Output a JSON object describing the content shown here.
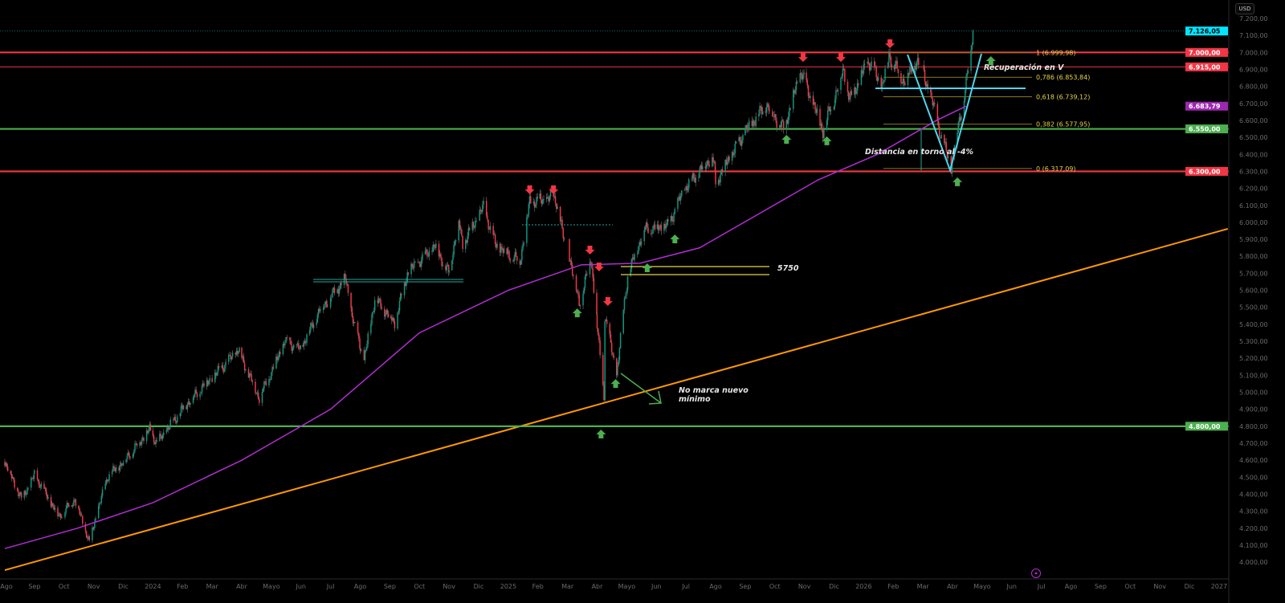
{
  "currency_button": "USD",
  "colors": {
    "up": "#089981",
    "down": "#f23645",
    "ma": "#b02ed0",
    "trend": "#ff9800",
    "fib": "#e8d44a",
    "v_shape": "#4dd6ee",
    "support": "#4caf50",
    "resistance": "#f23645"
  },
  "chart_data": {
    "type": "candlestick",
    "ylim": [
      3900,
      7250
    ],
    "x_range": [
      "2023-08-01",
      "2027-01-01"
    ],
    "y_ticks": [
      "7.200,00",
      "7.100,00",
      "7.000,00",
      "6.900,00",
      "6.800,00",
      "6.700,00",
      "6.600,00",
      "6.500,00",
      "6.400,00",
      "6.300,00",
      "6.200,00",
      "6.100,00",
      "6.000,00",
      "5.900,00",
      "5.800,00",
      "5.700,00",
      "5.600,00",
      "5.500,00",
      "5.400,00",
      "5.300,00",
      "5.200,00",
      "5.100,00",
      "5.000,00",
      "4.900,00",
      "4.800,00",
      "4.700,00",
      "4.600,00",
      "4.500,00",
      "4.400,00",
      "4.300,00",
      "4.200,00",
      "4.100,00",
      "4.000,00"
    ],
    "x_ticks": [
      "Ago",
      "Sep",
      "Oct",
      "Nov",
      "Dic",
      "2024",
      "Feb",
      "Mar",
      "Abr",
      "Mayo",
      "Jun",
      "Jul",
      "Ago",
      "Sep",
      "Oct",
      "Nov",
      "Dic",
      "2025",
      "Feb",
      "Mar",
      "Abr",
      "Mayo",
      "Jun",
      "Jul",
      "Ago",
      "Sep",
      "Oct",
      "Nov",
      "Dic",
      "2026",
      "Feb",
      "Mar",
      "Abr",
      "Mayo",
      "Jun",
      "Jul",
      "Ago",
      "Sep",
      "Oct",
      "Nov",
      "Dic",
      "2027"
    ],
    "price_closes": [
      [
        "2023-08-01",
        4590
      ],
      [
        "2023-08-18",
        4370
      ],
      [
        "2023-09-01",
        4515
      ],
      [
        "2023-09-26",
        4270
      ],
      [
        "2023-10-12",
        4370
      ],
      [
        "2023-10-27",
        4117
      ],
      [
        "2023-11-15",
        4500
      ],
      [
        "2023-12-01",
        4590
      ],
      [
        "2023-12-28",
        4780
      ],
      [
        "2024-01-05",
        4700
      ],
      [
        "2024-01-31",
        4900
      ],
      [
        "2024-02-28",
        5070
      ],
      [
        "2024-03-28",
        5250
      ],
      [
        "2024-04-19",
        4967
      ],
      [
        "2024-05-15",
        5300
      ],
      [
        "2024-05-31",
        5250
      ],
      [
        "2024-06-20",
        5480
      ],
      [
        "2024-07-16",
        5670
      ],
      [
        "2024-07-25",
        5400
      ],
      [
        "2024-08-05",
        5186
      ],
      [
        "2024-08-16",
        5550
      ],
      [
        "2024-09-06",
        5410
      ],
      [
        "2024-09-19",
        5700
      ],
      [
        "2024-10-17",
        5860
      ],
      [
        "2024-10-31",
        5700
      ],
      [
        "2024-11-11",
        6000
      ],
      [
        "2024-11-15",
        5870
      ],
      [
        "2024-12-06",
        6090
      ],
      [
        "2024-12-18",
        5870
      ],
      [
        "2025-01-13",
        5770
      ],
      [
        "2025-01-23",
        6120
      ],
      [
        "2025-02-19",
        6144
      ],
      [
        "2025-03-13",
        5520
      ],
      [
        "2025-03-25",
        5790
      ],
      [
        "2025-04-08",
        4980
      ],
      [
        "2025-04-09",
        5450
      ],
      [
        "2025-04-21",
        5100
      ],
      [
        "2025-05-02",
        5690
      ],
      [
        "2025-05-19",
        5960
      ],
      [
        "2025-06-13",
        5980
      ],
      [
        "2025-06-30",
        6200
      ],
      [
        "2025-07-28",
        6390
      ],
      [
        "2025-08-01",
        6240
      ],
      [
        "2025-08-28",
        6500
      ],
      [
        "2025-09-22",
        6690
      ],
      [
        "2025-10-10",
        6550
      ],
      [
        "2025-10-28",
        6890
      ],
      [
        "2025-11-20",
        6540
      ],
      [
        "2025-12-11",
        6900
      ],
      [
        "2025-12-17",
        6720
      ],
      [
        "2026-01-06",
        6950
      ],
      [
        "2026-01-20",
        6800
      ],
      [
        "2026-01-27",
        6980
      ],
      [
        "2026-02-12",
        6830
      ],
      [
        "2026-02-25",
        6950
      ],
      [
        "2026-03-10",
        6720
      ],
      [
        "2026-03-20",
        6500
      ],
      [
        "2026-03-30",
        6320
      ],
      [
        "2026-04-08",
        6600
      ],
      [
        "2026-04-14",
        6780
      ],
      [
        "2026-04-17",
        6900
      ],
      [
        "2026-04-22",
        7126
      ]
    ],
    "moving_average": [
      [
        "2023-08-01",
        4080
      ],
      [
        "2023-10-15",
        4200
      ],
      [
        "2024-01-01",
        4350
      ],
      [
        "2024-04-01",
        4600
      ],
      [
        "2024-07-01",
        4900
      ],
      [
        "2024-10-01",
        5350
      ],
      [
        "2025-01-01",
        5600
      ],
      [
        "2025-03-15",
        5750
      ],
      [
        "2025-05-15",
        5760
      ],
      [
        "2025-07-15",
        5850
      ],
      [
        "2025-09-15",
        6050
      ],
      [
        "2025-11-15",
        6250
      ],
      [
        "2026-01-15",
        6400
      ],
      [
        "2026-03-15",
        6600
      ],
      [
        "2026-04-15",
        6684
      ]
    ],
    "trendline": [
      [
        "2023-08-01",
        3953
      ],
      [
        "2027-01-10",
        5962
      ]
    ],
    "levels": [
      {
        "price": 7126.05,
        "label": "7.126,05",
        "color": "#00e5ff",
        "text": "#000",
        "style": "dotted"
      },
      {
        "price": 7000,
        "label": "7.000,00",
        "color": "#f23645",
        "text": "#fff",
        "style": "thick"
      },
      {
        "price": 6915,
        "label": "6.915,00",
        "color": "#f23645",
        "text": "#fff",
        "style": "thin"
      },
      {
        "price": 6683.79,
        "label": "6.683,79",
        "color": "#9c27b0",
        "text": "#fff",
        "style": "none"
      },
      {
        "price": 6550,
        "label": "6.550,00",
        "color": "#4caf50",
        "text": "#fff",
        "style": "thick"
      },
      {
        "price": 6300,
        "label": "6.300,00",
        "color": "#f23645",
        "text": "#fff",
        "style": "thick"
      },
      {
        "price": 4800,
        "label": "4.800,00",
        "color": "#4caf50",
        "text": "#fff",
        "style": "thick"
      }
    ],
    "fibonacci": [
      {
        "price": 6999.98,
        "label": "1 (6.999,98)"
      },
      {
        "price": 6853.84,
        "label": "0,786 (6.853,84)"
      },
      {
        "price": 6739.12,
        "label": "0,618 (6.739,12)"
      },
      {
        "price": 6577.95,
        "label": "0,382 (6.577,95)"
      },
      {
        "price": 6317.09,
        "label": "0 (6.317,09)"
      }
    ],
    "down_arrows": [
      [
        "2025-10-30",
        6968
      ],
      [
        "2025-12-08",
        6968
      ],
      [
        "2026-01-28",
        7049
      ],
      [
        "2025-01-23",
        6189
      ],
      [
        "2025-02-17",
        6189
      ],
      [
        "2025-03-24",
        5834
      ],
      [
        "2025-04-03",
        5735
      ],
      [
        "2025-04-12",
        5532
      ]
    ],
    "up_arrows": [
      [
        "2025-10-13",
        6491
      ],
      [
        "2025-11-24",
        6482
      ],
      [
        "2026-04-06",
        6241
      ],
      [
        "2025-06-20",
        5905
      ],
      [
        "2025-05-22",
        5735
      ],
      [
        "2025-03-11",
        5470
      ],
      [
        "2025-04-20",
        5054
      ],
      [
        "2025-04-05",
        4757
      ],
      [
        "2026-05-10",
        6954
      ]
    ],
    "annotations": {
      "v_recovery": "Recuperación en V",
      "distance": "Distancia en torno al -4%",
      "level_5750": "5750",
      "no_new_low_1": "No marca nuevo",
      "no_new_low_2": "mínimo"
    }
  }
}
